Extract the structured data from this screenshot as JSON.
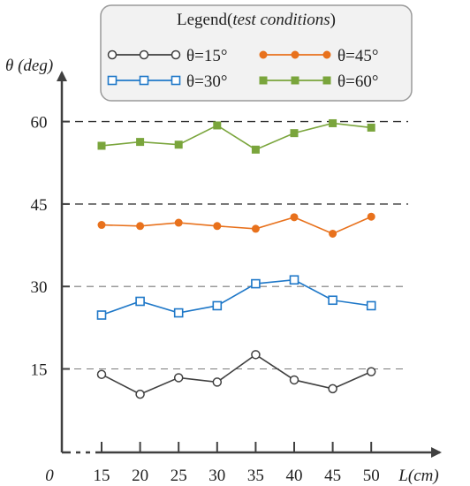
{
  "chart_data": {
    "type": "line",
    "title": "",
    "legend": {
      "title_main": "Legend(",
      "title_italic": "test conditions",
      "title_close": ")",
      "placement": "top-right"
    },
    "xlabel": "L(cm)",
    "ylabel": "θ (deg)",
    "x_origin_label": "0",
    "x": [
      15,
      20,
      25,
      30,
      35,
      40,
      45,
      50
    ],
    "xticks": [
      "15",
      "20",
      "25",
      "30",
      "35",
      "40",
      "45",
      "50"
    ],
    "yticks": [
      15,
      30,
      45,
      60
    ],
    "ytick_labels": [
      "15",
      "30",
      "45",
      "60"
    ],
    "ylim": [
      0,
      70
    ],
    "grid": "horizontal dashed at 15, 30, 45, 60",
    "series": [
      {
        "name": "θ=15°",
        "color": "#404040",
        "marker": "hollow-circle",
        "values": [
          14.0,
          10.4,
          13.4,
          12.6,
          17.6,
          13.0,
          11.4,
          14.5
        ]
      },
      {
        "name": "θ=30°",
        "color": "#1f78c8",
        "marker": "hollow-square",
        "values": [
          24.8,
          27.3,
          25.2,
          26.5,
          30.5,
          31.2,
          27.5,
          26.5
        ]
      },
      {
        "name": "θ=45°",
        "color": "#e8711c",
        "marker": "filled-circle",
        "values": [
          41.2,
          41.0,
          41.6,
          41.0,
          40.5,
          42.6,
          39.6,
          42.7
        ]
      },
      {
        "name": "θ=60°",
        "color": "#7aa53c",
        "marker": "filled-square",
        "values": [
          55.6,
          56.3,
          55.8,
          59.3,
          54.9,
          57.9,
          59.7,
          58.9
        ]
      }
    ]
  }
}
